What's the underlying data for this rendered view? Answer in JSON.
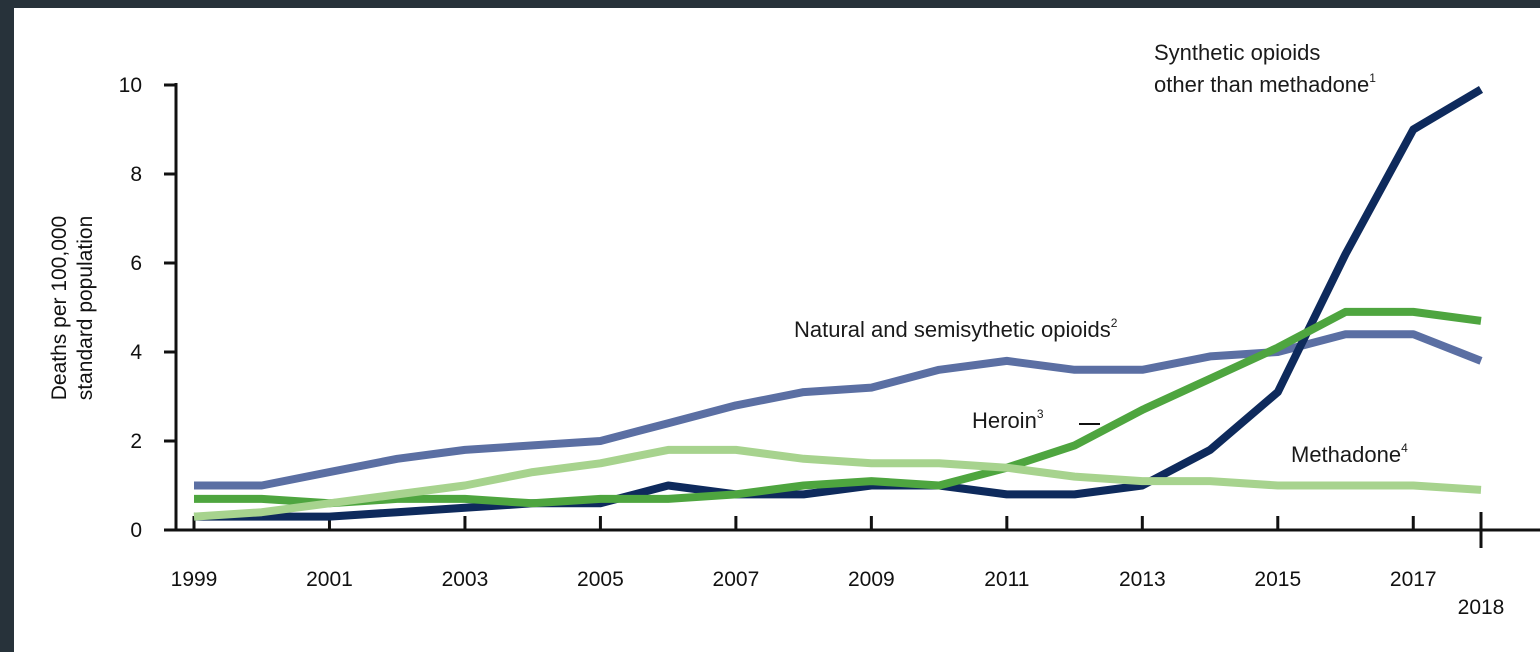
{
  "chart_data": {
    "type": "line",
    "ylabel": [
      "Deaths per 100,000",
      "standard population"
    ],
    "ylim": [
      0,
      10
    ],
    "yticks": [
      0,
      2,
      4,
      6,
      8,
      10
    ],
    "xlim": [
      1999,
      2018
    ],
    "xtick_labels": [
      "1999",
      "2001",
      "2003",
      "2005",
      "2007",
      "2009",
      "2011",
      "2013",
      "2015",
      "2017",
      "2018"
    ],
    "x": [
      1999,
      2000,
      2001,
      2002,
      2003,
      2004,
      2005,
      2006,
      2007,
      2008,
      2009,
      2010,
      2011,
      2012,
      2013,
      2014,
      2015,
      2016,
      2017,
      2018
    ],
    "legend": "inline",
    "grid": false,
    "series": [
      {
        "key": "synthetic",
        "name_lines": [
          "Synthetic opioids",
          "other than methadone"
        ],
        "sup": "1",
        "color": "#0e2a5c",
        "values": [
          0.3,
          0.3,
          0.3,
          0.4,
          0.5,
          0.6,
          0.6,
          1.0,
          0.8,
          0.8,
          1.0,
          1.0,
          0.8,
          0.8,
          1.0,
          1.8,
          3.1,
          6.2,
          9.0,
          9.9
        ]
      },
      {
        "key": "natural",
        "name_lines": [
          "Natural and semisythetic opioids"
        ],
        "sup": "2",
        "color": "#5b6fa3",
        "values": [
          1.0,
          1.0,
          1.3,
          1.6,
          1.8,
          1.9,
          2.0,
          2.4,
          2.8,
          3.1,
          3.2,
          3.6,
          3.8,
          3.6,
          3.6,
          3.9,
          4.0,
          4.4,
          4.4,
          3.8
        ]
      },
      {
        "key": "heroin",
        "name_lines": [
          "Heroin"
        ],
        "sup": "3",
        "color": "#4ea53f",
        "values": [
          0.7,
          0.7,
          0.6,
          0.7,
          0.7,
          0.6,
          0.7,
          0.7,
          0.8,
          1.0,
          1.1,
          1.0,
          1.4,
          1.9,
          2.7,
          3.4,
          4.1,
          4.9,
          4.9,
          4.7
        ]
      },
      {
        "key": "methadone",
        "name_lines": [
          "Methadone"
        ],
        "sup": "4",
        "color": "#a7d38e",
        "values": [
          0.3,
          0.4,
          0.6,
          0.8,
          1.0,
          1.3,
          1.5,
          1.8,
          1.8,
          1.6,
          1.5,
          1.5,
          1.4,
          1.2,
          1.1,
          1.1,
          1.0,
          1.0,
          1.0,
          0.9
        ]
      }
    ]
  }
}
